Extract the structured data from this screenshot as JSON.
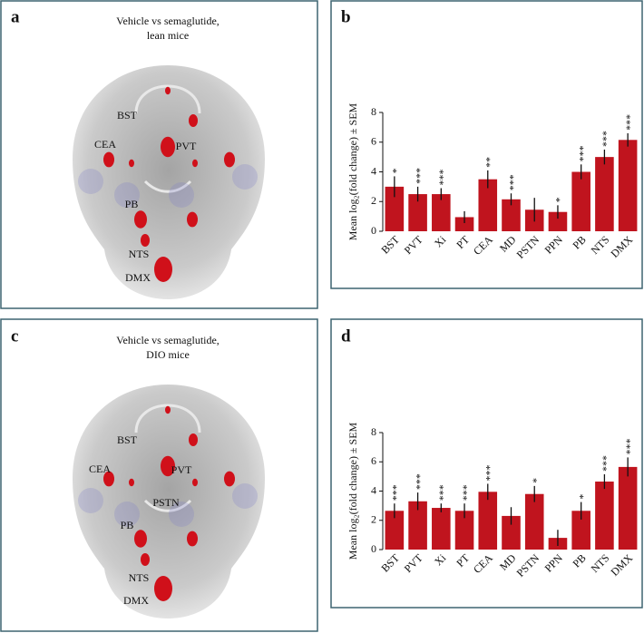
{
  "panels": [
    {
      "label": "a",
      "title": [
        "Vehicle vs semaglutide,",
        "lean mice"
      ],
      "regions": [
        "BST",
        "CEA",
        "PVT",
        "PB",
        "NTS",
        "DMX"
      ]
    },
    {
      "label": "c",
      "title": [
        "Vehicle vs semaglutide,",
        "DIO mice"
      ],
      "regions": [
        "BST",
        "CEA",
        "PVT",
        "PSTN",
        "PB",
        "NTS",
        "DMX"
      ]
    }
  ],
  "chart_data": [
    {
      "type": "bar",
      "panel_label": "b",
      "ylabel": "Mean log₂(fold change) ± SEM",
      "color": "#c0141e",
      "categories": [
        "BST",
        "PVT",
        "Xi",
        "PT",
        "CEA",
        "MD",
        "PSTN",
        "PPN",
        "PB",
        "NTS",
        "DMX"
      ],
      "values": [
        3.0,
        2.5,
        2.5,
        0.95,
        3.5,
        2.15,
        1.45,
        1.3,
        4.0,
        5.0,
        6.15
      ],
      "errors": [
        0.7,
        0.5,
        0.4,
        0.4,
        0.6,
        0.4,
        0.8,
        0.45,
        0.5,
        0.5,
        0.45
      ],
      "annotations": [
        "*",
        "***",
        "***",
        null,
        "**",
        "***",
        null,
        "*",
        "***",
        "***",
        "***"
      ],
      "ylim": [
        0,
        8
      ],
      "yticks": [
        0,
        2,
        4,
        6,
        8
      ]
    },
    {
      "type": "bar",
      "panel_label": "d",
      "ylabel": "Mean log₂(fold change) ± SEM",
      "color": "#c0141e",
      "categories": [
        "BST",
        "PVT",
        "Xi",
        "PT",
        "CEA",
        "MD",
        "PSTN",
        "PPN",
        "PB",
        "NTS",
        "DMX"
      ],
      "values": [
        2.65,
        3.3,
        2.85,
        2.65,
        3.95,
        2.3,
        3.8,
        0.8,
        2.65,
        4.65,
        5.65
      ],
      "errors": [
        0.5,
        0.6,
        0.3,
        0.5,
        0.55,
        0.6,
        0.55,
        0.55,
        0.6,
        0.5,
        0.65
      ],
      "annotations": [
        "***",
        "***",
        "***",
        "***",
        "***",
        null,
        "*",
        null,
        "*",
        "***",
        "***"
      ],
      "ylim": [
        0,
        8
      ],
      "yticks": [
        0,
        2,
        4,
        6,
        8
      ]
    }
  ]
}
